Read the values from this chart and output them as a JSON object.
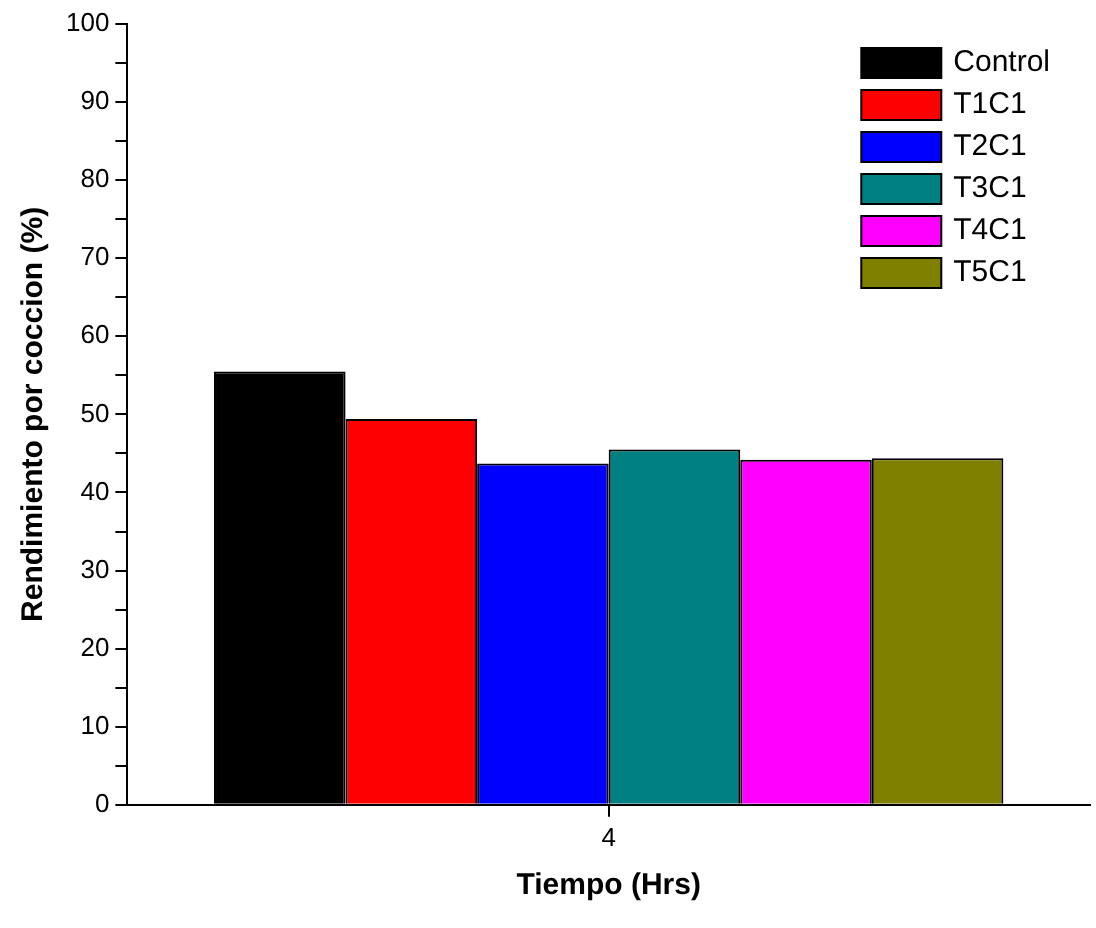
{
  "chart_data": {
    "type": "bar",
    "xlabel": "Tiempo (Hrs)",
    "ylabel": "Rendimiento por coccion (%)",
    "categories": [
      "4"
    ],
    "series": [
      {
        "name": "Control",
        "color": "#000000",
        "values": [
          55.5
        ]
      },
      {
        "name": "T1C1",
        "color": "#ff0000",
        "values": [
          49.4
        ]
      },
      {
        "name": "T2C1",
        "color": "#0000ff",
        "values": [
          43.7
        ]
      },
      {
        "name": "T3C1",
        "color": "#008080",
        "values": [
          45.5
        ]
      },
      {
        "name": "T4C1",
        "color": "#ff00ff",
        "values": [
          44.2
        ]
      },
      {
        "name": "T5C1",
        "color": "#808000",
        "values": [
          44.4
        ]
      }
    ],
    "ylim": [
      0,
      100
    ],
    "yticks": [
      0,
      {
        "value": 5,
        "label": null
      },
      10,
      {
        "value": 15,
        "label": null
      },
      20,
      {
        "value": 25,
        "label": null
      },
      30,
      {
        "value": 35,
        "label": null
      },
      40,
      {
        "value": 45,
        "label": null
      },
      50,
      {
        "value": 55,
        "label": null
      },
      60,
      {
        "value": 65,
        "label": null
      },
      70,
      {
        "value": 75,
        "label": null
      },
      80,
      {
        "value": 85,
        "label": null
      },
      90,
      {
        "value": 95,
        "label": null
      },
      100
    ],
    "grid": false,
    "legend": "top right"
  }
}
